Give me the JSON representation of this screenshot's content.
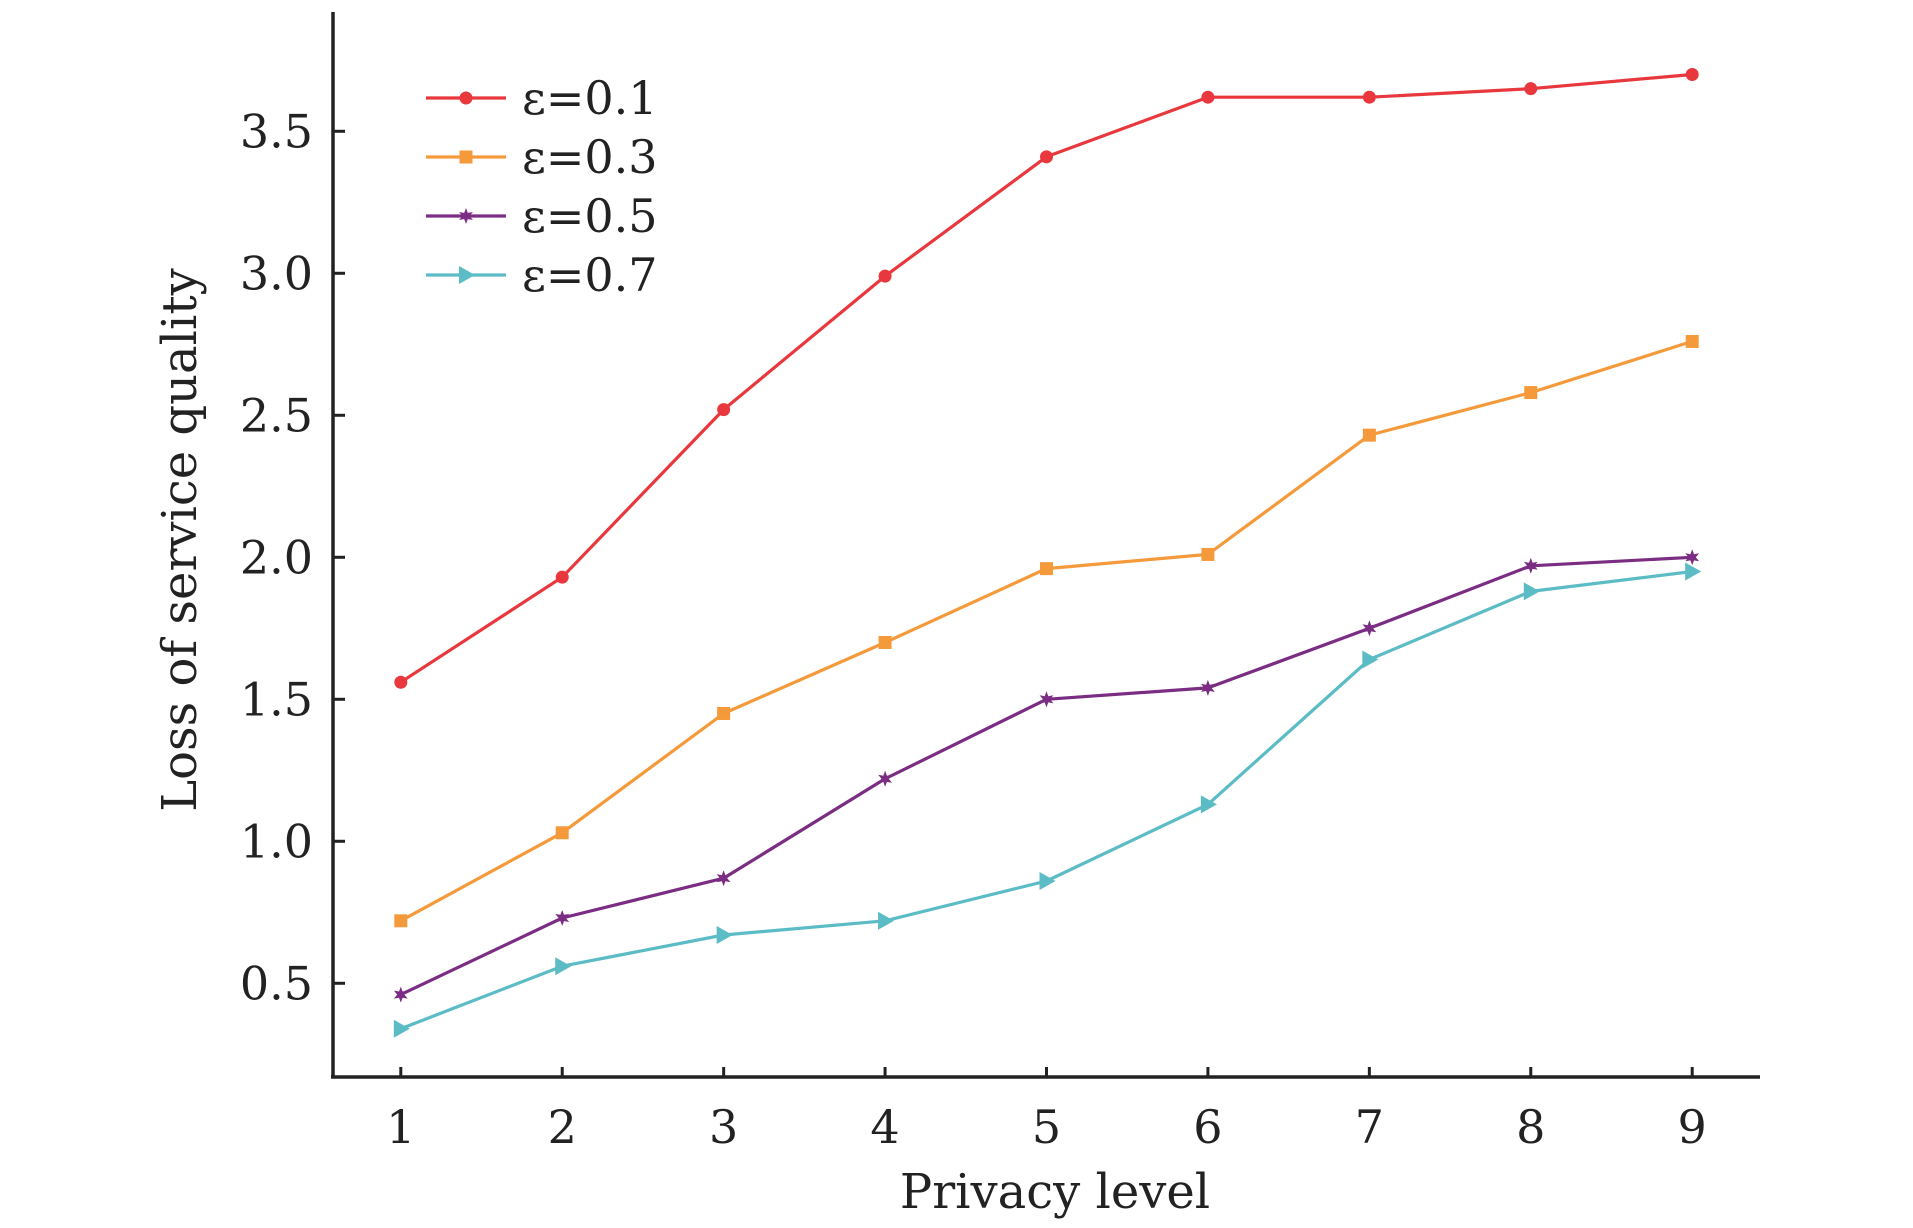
{
  "chart_data": {
    "type": "line",
    "xlabel": "Privacy level",
    "ylabel": "Loss of service quality",
    "x": [
      1,
      2,
      3,
      4,
      5,
      6,
      7,
      8,
      9
    ],
    "xticks": [
      "1",
      "2",
      "3",
      "4",
      "5",
      "6",
      "7",
      "8",
      "9"
    ],
    "yticks": [
      "0.5",
      "1.0",
      "1.5",
      "2.0",
      "2.5",
      "3.0",
      "3.5"
    ],
    "xlim": [
      0.58,
      9.42
    ],
    "ylim": [
      0.17,
      3.92
    ],
    "grid": false,
    "legend_position": "top-left",
    "series": [
      {
        "name": "ε=0.1",
        "color": "#e8383d",
        "marker": "circle",
        "values": [
          1.56,
          1.93,
          2.52,
          2.99,
          3.41,
          3.62,
          3.62,
          3.65,
          3.7
        ]
      },
      {
        "name": "ε=0.3",
        "color": "#f59a3b",
        "marker": "square",
        "values": [
          0.72,
          1.03,
          1.45,
          1.7,
          1.96,
          2.01,
          2.43,
          2.58,
          2.76
        ]
      },
      {
        "name": "ε=0.5",
        "color": "#7b2d83",
        "marker": "star",
        "values": [
          0.46,
          0.73,
          0.87,
          1.22,
          1.5,
          1.54,
          1.75,
          1.97,
          2.0
        ]
      },
      {
        "name": "ε=0.7",
        "color": "#5bbcc5",
        "marker": "triangle-right",
        "values": [
          0.34,
          0.56,
          0.67,
          0.72,
          0.86,
          1.13,
          1.64,
          1.88,
          1.95
        ]
      }
    ]
  }
}
